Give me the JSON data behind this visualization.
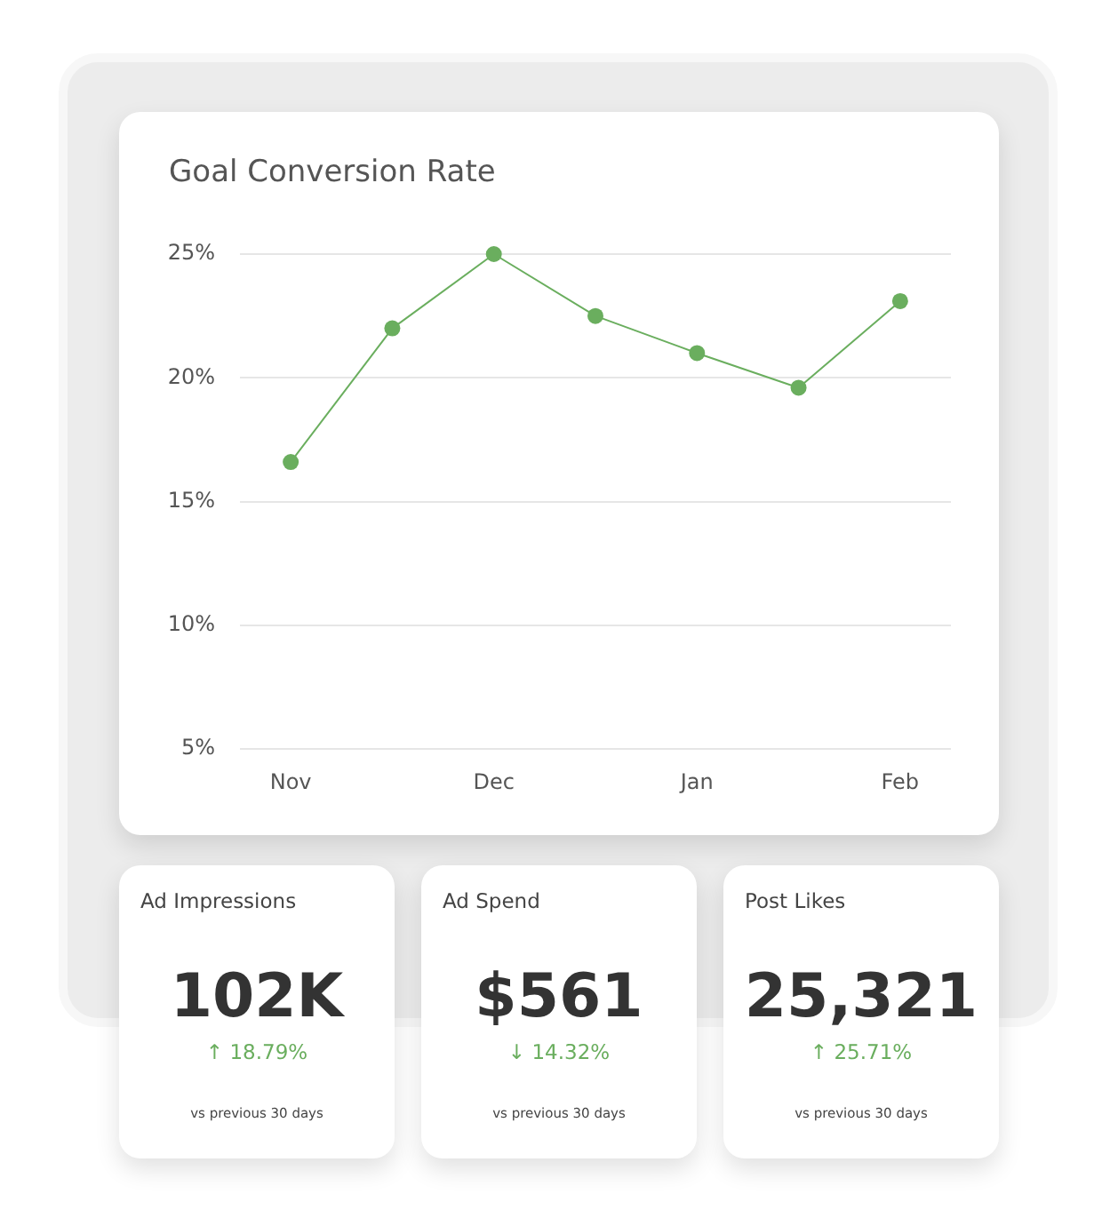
{
  "chart_data": [
    {
      "type": "line",
      "title": "Goal Conversion Rate",
      "categories": [
        "Nov",
        null,
        "Dec",
        null,
        "Jan",
        null,
        "Feb"
      ],
      "values": [
        16.6,
        22.0,
        25.0,
        22.5,
        21.0,
        19.6,
        23.1
      ],
      "color": "#6aae5e",
      "marker": "circle",
      "grid": "y",
      "ylim": [
        5,
        25
      ],
      "yticks": [
        {
          "value": 5,
          "label": "5%"
        },
        {
          "value": 10,
          "label": "10%"
        },
        {
          "value": 15,
          "label": "15%"
        },
        {
          "value": 20,
          "label": "20%"
        },
        {
          "value": 25,
          "label": "25%"
        }
      ]
    },
    {
      "type": "other",
      "title": "Ad Impressions",
      "annotations": [
        "102K",
        "↑ 18.79%",
        "vs previous 30 days"
      ]
    },
    {
      "type": "other",
      "title": "Ad Spend",
      "annotations": [
        "$561",
        "↓ 14.32%",
        "vs previous 30 days"
      ]
    },
    {
      "type": "other",
      "title": "Post Likes",
      "annotations": [
        "25,321",
        "↑ 25.71%",
        "vs previous 30 days"
      ]
    }
  ]
}
